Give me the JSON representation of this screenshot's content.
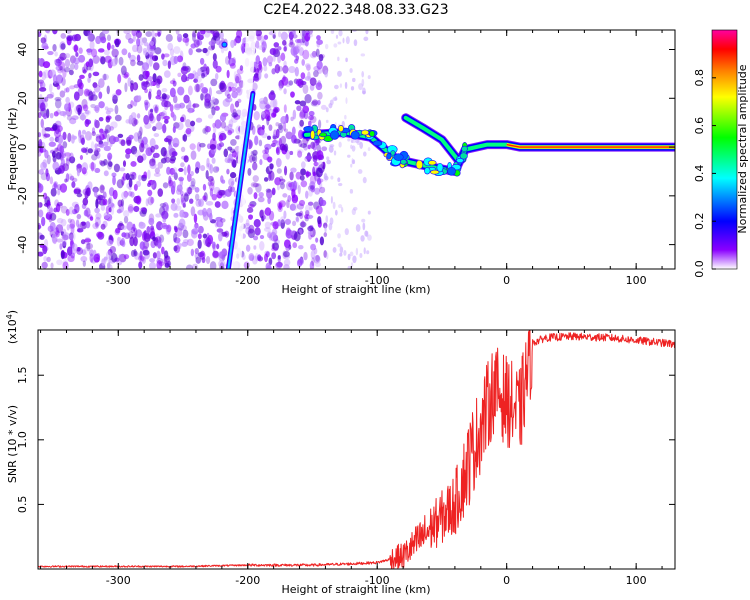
{
  "title": "C2E4.2022.348.08.33.G23",
  "chart_data": [
    {
      "type": "heatmap",
      "xlabel": "Height of straight line (km)",
      "ylabel": "Frequency (Hz)",
      "xlim": [
        -362,
        130
      ],
      "ylim": [
        -50,
        48
      ],
      "xticks": [
        -300,
        -200,
        -100,
        0,
        100
      ],
      "xtick_labels": [
        "-300",
        "-200",
        "-100",
        "0",
        "100"
      ],
      "yticks": [
        -40,
        -20,
        0,
        20,
        40
      ],
      "ytick_labels": [
        "-40",
        "-20",
        "0",
        "20",
        "40"
      ],
      "colorbar": {
        "label": "Normalized spectral amplitude",
        "range": [
          0,
          1
        ],
        "ticks": [
          0.0,
          0.2,
          0.4,
          0.6,
          0.8
        ],
        "tick_labels": [
          "0.0",
          "0.2",
          "0.4",
          "0.6",
          "0.8"
        ],
        "colors": [
          "#ffffff",
          "#8a00ff",
          "#0000ff",
          "#00ffff",
          "#00ff00",
          "#ffff00",
          "#ff7f00",
          "#ff0000",
          "#ff00a0"
        ]
      },
      "features": {
        "noise_region_x": [
          -362,
          -140
        ],
        "sparse_noise_x": [
          -140,
          -105
        ],
        "slanted_streak": [
          [
            -215,
            -50
          ],
          [
            -196,
            22
          ]
        ],
        "signal_path": [
          [
            -155,
            5
          ],
          [
            -125,
            6
          ],
          [
            -105,
            4
          ],
          [
            -85,
            -5
          ],
          [
            -60,
            -8
          ],
          [
            -40,
            -10
          ],
          [
            -32,
            -1
          ],
          [
            -15,
            1
          ],
          [
            0,
            1
          ],
          [
            10,
            0
          ],
          [
            130,
            0
          ]
        ],
        "branch_path": [
          [
            -78,
            12
          ],
          [
            -65,
            8
          ],
          [
            -50,
            3
          ],
          [
            -38,
            -5
          ]
        ]
      }
    },
    {
      "type": "line",
      "xlabel": "Height of straight line (km)",
      "ylabel": "SNR (10 * v/v)",
      "y_multiplier": "(x10^4)",
      "xlim": [
        -362,
        130
      ],
      "ylim": [
        0,
        1.85
      ],
      "xticks": [
        -300,
        -200,
        -100,
        0,
        100
      ],
      "xtick_labels": [
        "-300",
        "-200",
        "-100",
        "0",
        "100"
      ],
      "yticks": [
        0.5,
        1.0,
        1.5
      ],
      "ytick_labels": [
        "0.5",
        "1.0",
        "1.5"
      ],
      "series": [
        {
          "color": "#ee2222",
          "x": [
            -362,
            -300,
            -250,
            -200,
            -150,
            -120,
            -100,
            -80,
            -60,
            -40,
            -30,
            -20,
            -10,
            0,
            10,
            20,
            30,
            50,
            80,
            100,
            130
          ],
          "y": [
            0.02,
            0.02,
            0.02,
            0.03,
            0.03,
            0.04,
            0.05,
            0.1,
            0.3,
            0.5,
            0.8,
            1.1,
            1.4,
            1.3,
            1.2,
            1.75,
            1.79,
            1.8,
            1.79,
            1.77,
            1.74
          ]
        }
      ]
    }
  ]
}
